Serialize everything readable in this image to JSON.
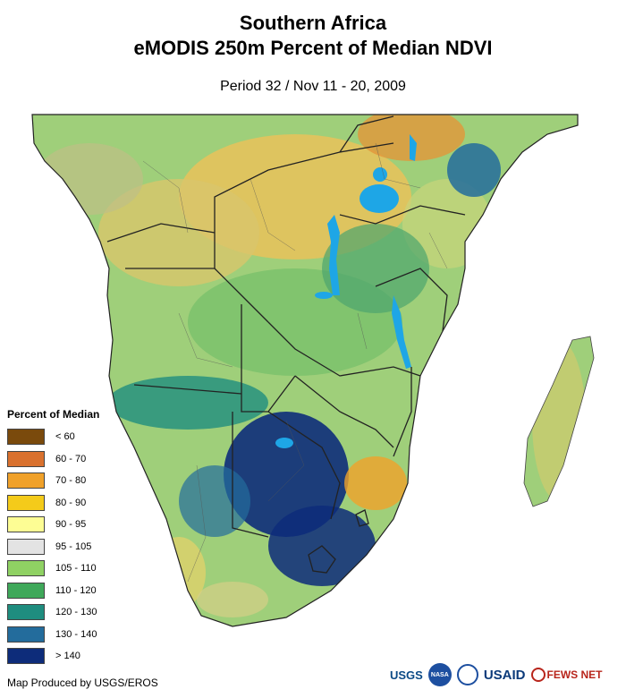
{
  "title": {
    "line1": "Southern Africa",
    "line2": "eMODIS 250m Percent of Median NDVI"
  },
  "subtitle": "Period 32 / Nov 11 - 20, 2009",
  "legend": {
    "title": "Percent of Median",
    "items": [
      {
        "label": "< 60",
        "color": "#7a4a0c"
      },
      {
        "label": "60 - 70",
        "color": "#d9712e"
      },
      {
        "label": "70 - 80",
        "color": "#f0a12a"
      },
      {
        "label": "80 - 90",
        "color": "#f4cb1a"
      },
      {
        "label": "90 - 95",
        "color": "#fdfd94"
      },
      {
        "label": "95 - 105",
        "color": "#e3e3e3"
      },
      {
        "label": "105 - 110",
        "color": "#8fd163"
      },
      {
        "label": "110 - 120",
        "color": "#3fa85a"
      },
      {
        "label": "120 - 130",
        "color": "#1f8d7f"
      },
      {
        "label": "130 - 140",
        "color": "#236c9c"
      },
      {
        "label": "> 140",
        "color": "#0d2c7a"
      }
    ]
  },
  "credit": "Map Produced by USGS/EROS",
  "logos": {
    "usgs": "USGS",
    "nasa": "NASA",
    "usaid": "USAID",
    "fews": "FEWS NET"
  },
  "colors": {
    "water": "#1ea6e6",
    "border": "#222222"
  }
}
